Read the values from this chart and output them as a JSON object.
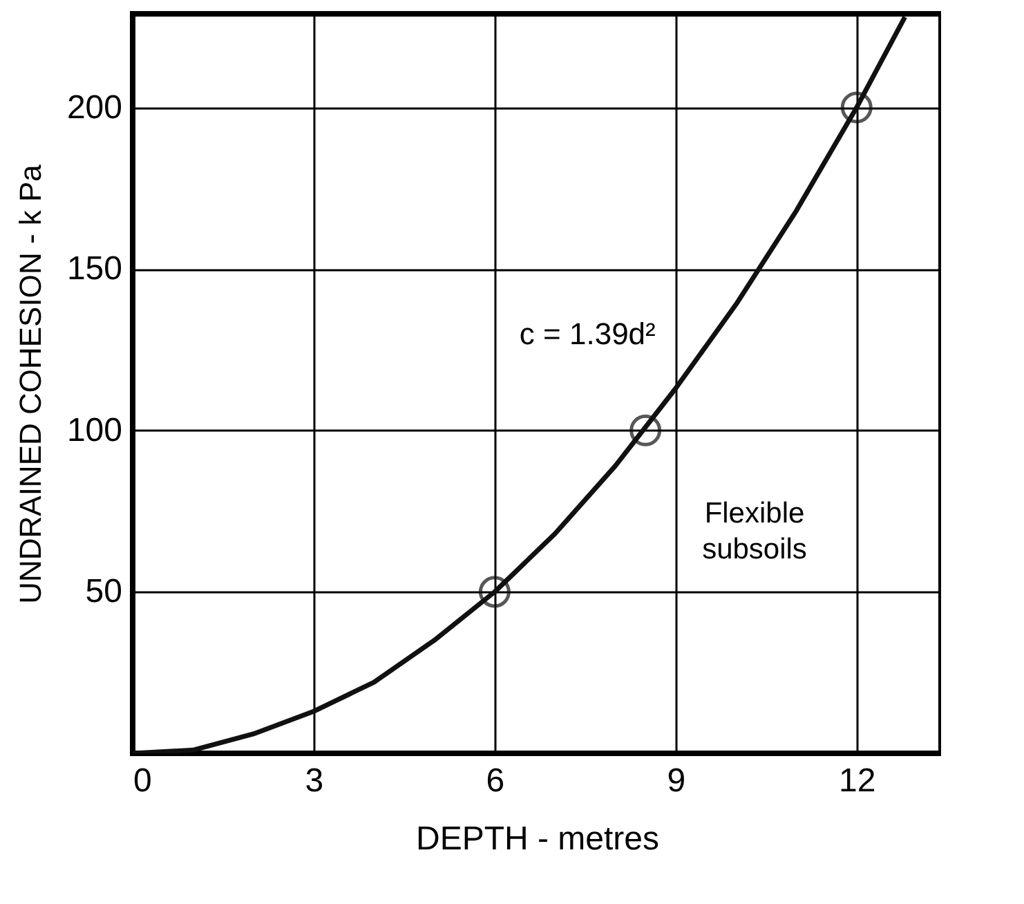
{
  "chart_data": {
    "type": "line",
    "xlabel": "DEPTH  - metres",
    "ylabel": "UNDRAINED COHESION - k Pa",
    "series": [
      {
        "type": "line",
        "color": "#111111",
        "marker": "none",
        "x": [
          0,
          1,
          2,
          3,
          4,
          5,
          6,
          7,
          8,
          9,
          10,
          11,
          12,
          12.8
        ],
        "values": [
          0,
          1,
          6,
          13,
          22,
          35,
          50,
          68,
          89,
          113,
          139,
          168,
          200,
          228
        ]
      },
      {
        "type": "scatter",
        "color": "#111111",
        "marker": "circle",
        "x": [
          6,
          8.5,
          12
        ],
        "values": [
          50,
          100,
          200
        ]
      }
    ],
    "xlim": [
      0,
      13.4
    ],
    "ylim": [
      0,
      229
    ],
    "xticks": [
      0,
      3,
      6,
      9,
      12
    ],
    "yticks": [
      50,
      100,
      150,
      200
    ],
    "grid": true,
    "annotations": [
      {
        "text": "c = 1.39d²",
        "x": 9.4,
        "y": 122
      },
      "Flexible subsoils"
    ]
  }
}
